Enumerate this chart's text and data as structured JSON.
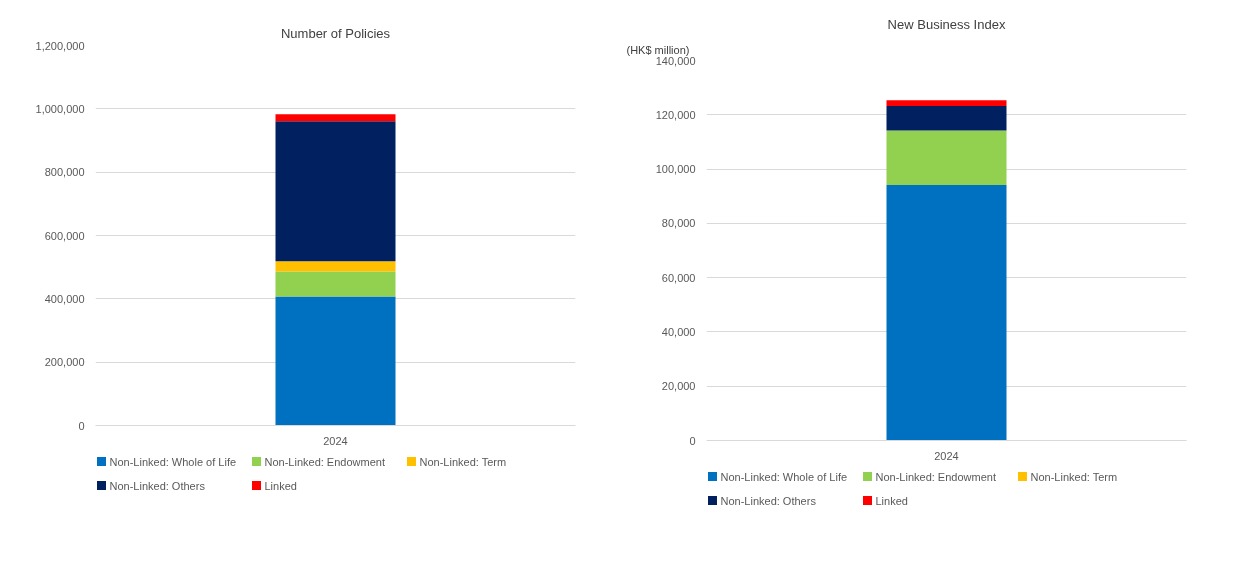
{
  "chart_data": [
    {
      "type": "bar",
      "title": "Number of Policies",
      "stacked": true,
      "categories": [
        "2024"
      ],
      "series": [
        {
          "name": "Non-Linked: Whole of Life",
          "color": "#0070c0",
          "values": [
            407000
          ]
        },
        {
          "name": "Non-Linked: Endowment",
          "color": "#92d050",
          "values": [
            79000
          ]
        },
        {
          "name": "Non-Linked: Term",
          "color": "#ffc000",
          "values": [
            33000
          ]
        },
        {
          "name": "Non-Linked: Others",
          "color": "#002060",
          "values": [
            442000
          ]
        },
        {
          "name": "Linked",
          "color": "#ff0000",
          "values": [
            22000
          ]
        }
      ],
      "ylim": [
        0,
        1200000
      ],
      "yticks": [
        {
          "value": 0,
          "label": "0"
        },
        {
          "value": 200000,
          "label": "200,000"
        },
        {
          "value": 400000,
          "label": "400,000"
        },
        {
          "value": 600000,
          "label": "600,000"
        },
        {
          "value": 800000,
          "label": "800,000"
        },
        {
          "value": 1000000,
          "label": "1,000,000"
        },
        {
          "value": 1200000,
          "label": "1,200,000"
        }
      ],
      "grid": "y",
      "legend": "bottom"
    },
    {
      "type": "bar",
      "title": "New Business Index",
      "ylabel": "(HK$ million)",
      "stacked": true,
      "categories": [
        "2024"
      ],
      "series": [
        {
          "name": "Non-Linked: Whole of Life",
          "color": "#0070c0",
          "values": [
            94100
          ]
        },
        {
          "name": "Non-Linked: Endowment",
          "color": "#92d050",
          "values": [
            20100
          ]
        },
        {
          "name": "Non-Linked: Term",
          "color": "#ffc000",
          "values": [
            0
          ]
        },
        {
          "name": "Non-Linked: Others",
          "color": "#002060",
          "values": [
            9000
          ]
        },
        {
          "name": "Linked",
          "color": "#ff0000",
          "values": [
            2200
          ]
        }
      ],
      "ylim": [
        0,
        140000
      ],
      "yticks": [
        {
          "value": 0,
          "label": "0"
        },
        {
          "value": 20000,
          "label": "20,000"
        },
        {
          "value": 40000,
          "label": "40,000"
        },
        {
          "value": 60000,
          "label": "60,000"
        },
        {
          "value": 80000,
          "label": "80,000"
        },
        {
          "value": 100000,
          "label": "100,000"
        },
        {
          "value": 120000,
          "label": "120,000"
        },
        {
          "value": 140000,
          "label": "140,000"
        }
      ],
      "grid": "y",
      "legend": "bottom"
    }
  ]
}
